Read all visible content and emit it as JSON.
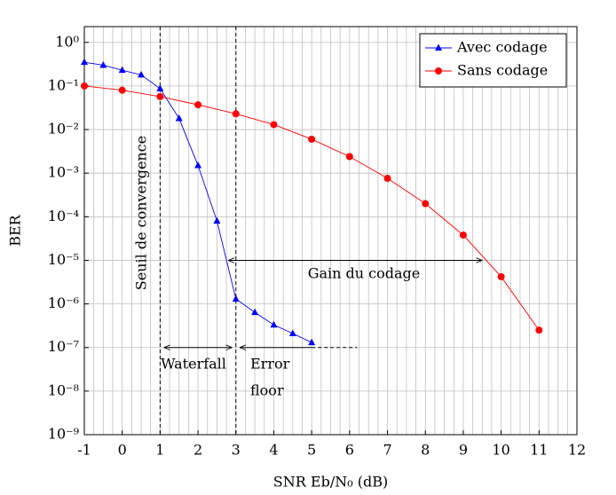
{
  "chart_data": {
    "type": "line",
    "log_y": true,
    "grid": true,
    "xgrid_step": 0.25,
    "xlabel": "SNR Eb/N₀ (dB)",
    "ylabel": "BER",
    "xlim": [
      -1,
      12
    ],
    "ylim": [
      1e-09,
      2.3
    ],
    "xticks": [
      -1,
      0,
      1,
      2,
      3,
      4,
      5,
      6,
      7,
      8,
      9,
      10,
      11,
      12
    ],
    "yticks": [
      {
        "value": 1e-09,
        "label": "10⁻⁹"
      },
      {
        "value": 1e-08,
        "label": "10⁻⁸"
      },
      {
        "value": 1e-07,
        "label": "10⁻⁷"
      },
      {
        "value": 1e-06,
        "label": "10⁻⁶"
      },
      {
        "value": 1e-05,
        "label": "10⁻⁵"
      },
      {
        "value": 0.0001,
        "label": "10⁻⁴"
      },
      {
        "value": 0.001,
        "label": "10⁻³"
      },
      {
        "value": 0.01,
        "label": "10⁻²"
      },
      {
        "value": 0.1,
        "label": "10⁻¹"
      },
      {
        "value": 1,
        "label": "10⁰"
      }
    ],
    "legend": "upper right",
    "series": [
      {
        "name": "Avec codage",
        "color": "#0000ff",
        "marker": "triangle",
        "x": [
          -1,
          -0.5,
          0,
          0.5,
          1,
          1.5,
          2,
          2.5,
          3,
          3.5,
          4,
          4.5,
          5
        ],
        "values": [
          0.35,
          0.3,
          0.23,
          0.18,
          0.087,
          0.018,
          0.0015,
          8e-05,
          1.3e-06,
          6.4e-07,
          3.3e-07,
          2.1e-07,
          1.3e-07
        ]
      },
      {
        "name": "Sans codage",
        "color": "#ff0000",
        "marker": "circle",
        "x": [
          -1,
          0,
          1,
          2,
          3,
          4,
          5,
          6,
          7,
          8,
          9,
          10,
          11
        ],
        "values": [
          0.1,
          0.08,
          0.057,
          0.037,
          0.023,
          0.013,
          0.006,
          0.0024,
          0.00076,
          0.0002,
          3.8e-05,
          4.2e-06,
          2.5e-07
        ]
      }
    ],
    "vlines": [
      1,
      3
    ],
    "arrows": [
      {
        "x": [
          2.8,
          9.5
        ],
        "y": 1e-05,
        "heads": "both",
        "style": "solid"
      },
      {
        "x": [
          1.1,
          2.9
        ],
        "y": 1e-07,
        "heads": "both",
        "style": "solid"
      },
      {
        "x": [
          3.1,
          5
        ],
        "y": 1e-07,
        "heads": "start",
        "style": "solid"
      },
      {
        "x": [
          5,
          6.2
        ],
        "y": 1e-07,
        "heads": "none",
        "style": "dashed"
      }
    ],
    "annotations": {
      "threshold": "Seuil de convergence",
      "gain": "Gain du codage",
      "waterfall": "Waterfall",
      "error_floor": [
        "Error",
        "floor"
      ]
    }
  }
}
